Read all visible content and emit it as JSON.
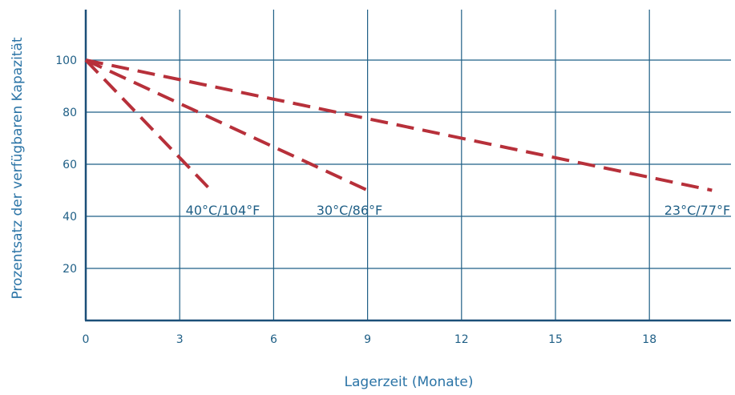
{
  "chart_data": {
    "type": "line",
    "title": "",
    "xlabel": "Lagerzeit (Monate)",
    "ylabel": "Prozentsatz der verfügbaren Kapazität",
    "xlim": [
      0,
      20.3
    ],
    "ylim": [
      0,
      120
    ],
    "x_ticks": [
      0,
      3,
      6,
      9,
      12,
      15,
      18
    ],
    "y_ticks": [
      20,
      40,
      60,
      80,
      100
    ],
    "grid": true,
    "legend": "none",
    "series": [
      {
        "name": "40°C/104°F",
        "color": "#b7303a",
        "points": [
          [
            0,
            100
          ],
          [
            4,
            50
          ]
        ]
      },
      {
        "name": "30°C/86°F",
        "color": "#b7303a",
        "points": [
          [
            0,
            100
          ],
          [
            9,
            50
          ]
        ]
      },
      {
        "name": "23°C/77°F",
        "color": "#b7303a",
        "points": [
          [
            0,
            100
          ],
          [
            20,
            50
          ]
        ]
      }
    ]
  },
  "colors": {
    "axis": "#1b4f78",
    "grid": "#1f5f86",
    "text": "#1f5f86",
    "series": "#b7303a"
  }
}
